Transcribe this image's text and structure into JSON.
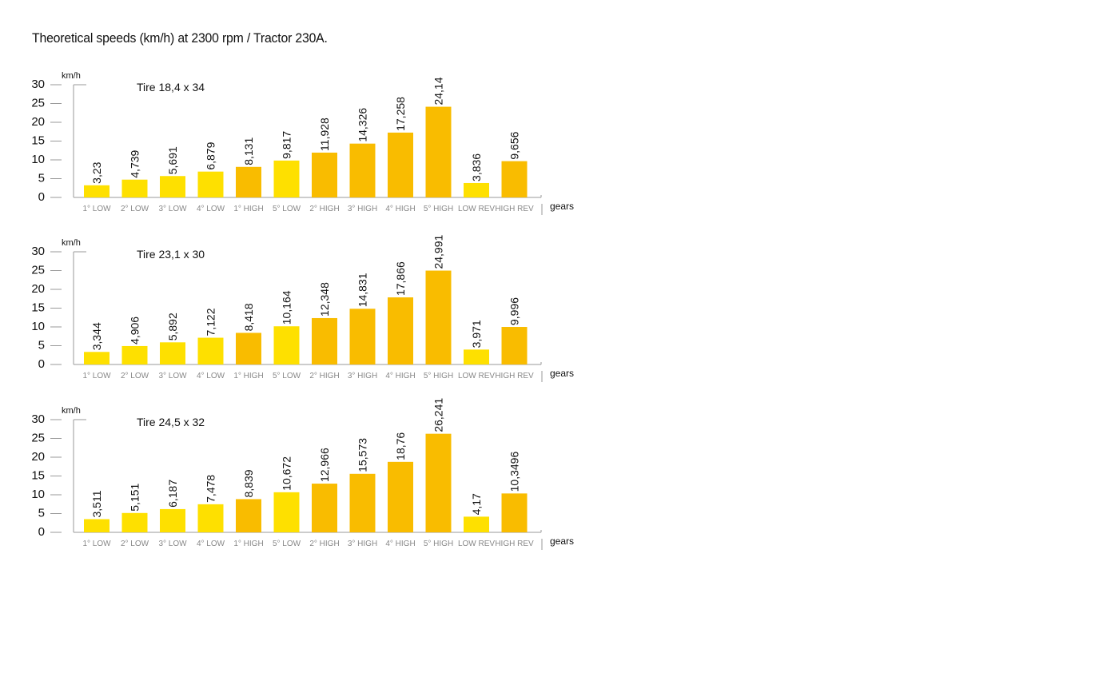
{
  "title": "Theoretical speeds (km/h) at 2300 rpm / Tractor 230A.",
  "colors": {
    "low": "#FEE000",
    "high": "#F9BC00",
    "axis": "#9a9a9a",
    "tick_text": "#111111",
    "category_text": "#888888",
    "label_text": "#111111"
  },
  "chart_data": [
    {
      "type": "bar",
      "subtitle": "Tire 18,4 x 34",
      "ylabel": "km/h",
      "xlabel": "gears",
      "ylim": [
        0,
        30
      ],
      "yticks": [
        0,
        5,
        10,
        15,
        20,
        25,
        30
      ],
      "categories": [
        "1° LOW",
        "2° LOW",
        "3° LOW",
        "4° LOW",
        "1° HIGH",
        "5° LOW",
        "2° HIGH",
        "3° HIGH",
        "4° HIGH",
        "5° HIGH",
        "LOW REV",
        "HIGH REV"
      ],
      "values": [
        3.23,
        4.739,
        5.691,
        6.879,
        8.131,
        9.817,
        11.928,
        14.326,
        17.258,
        24.14,
        3.836,
        9.656
      ],
      "value_labels": [
        "3,23",
        "4,739",
        "5,691",
        "6,879",
        "8,131",
        "9,817",
        "11,928",
        "14,326",
        "17,258",
        "24,14",
        "3,836",
        "9,656"
      ],
      "bar_colors": [
        "low",
        "low",
        "low",
        "low",
        "high",
        "low",
        "high",
        "high",
        "high",
        "high",
        "low",
        "high"
      ]
    },
    {
      "type": "bar",
      "subtitle": "Tire 23,1 x 30",
      "ylabel": "km/h",
      "xlabel": "gears",
      "ylim": [
        0,
        30
      ],
      "yticks": [
        0,
        5,
        10,
        15,
        20,
        25,
        30
      ],
      "categories": [
        "1° LOW",
        "2° LOW",
        "3° LOW",
        "4° LOW",
        "1° HIGH",
        "5° LOW",
        "2° HIGH",
        "3° HIGH",
        "4° HIGH",
        "5° HIGH",
        "LOW REV",
        "HIGH REV"
      ],
      "values": [
        3.344,
        4.906,
        5.892,
        7.122,
        8.418,
        10.164,
        12.348,
        14.831,
        17.866,
        24.991,
        3.971,
        9.996
      ],
      "value_labels": [
        "3,344",
        "4,906",
        "5,892",
        "7,122",
        "8,418",
        "10,164",
        "12,348",
        "14,831",
        "17,866",
        "24,991",
        "3,971",
        "9,996"
      ],
      "bar_colors": [
        "low",
        "low",
        "low",
        "low",
        "high",
        "low",
        "high",
        "high",
        "high",
        "high",
        "low",
        "high"
      ]
    },
    {
      "type": "bar",
      "subtitle": "Tire 24,5 x 32",
      "ylabel": "km/h",
      "xlabel": "gears",
      "ylim": [
        0,
        30
      ],
      "yticks": [
        0,
        5,
        10,
        15,
        20,
        25,
        30
      ],
      "categories": [
        "1° LOW",
        "2° LOW",
        "3° LOW",
        "4° LOW",
        "1° HIGH",
        "5° LOW",
        "2° HIGH",
        "3° HIGH",
        "4° HIGH",
        "5° HIGH",
        "LOW REV",
        "HIGH REV"
      ],
      "values": [
        3.511,
        5.151,
        6.187,
        7.478,
        8.839,
        10.672,
        12.966,
        15.573,
        18.76,
        26.241,
        4.17,
        10.3496
      ],
      "value_labels": [
        "3,511",
        "5,151",
        "6,187",
        "7,478",
        "8,839",
        "10,672",
        "12,966",
        "15,573",
        "18,76",
        "26,241",
        "4,17",
        "10,3496"
      ],
      "bar_colors": [
        "low",
        "low",
        "low",
        "low",
        "high",
        "low",
        "high",
        "high",
        "high",
        "high",
        "low",
        "high"
      ]
    }
  ]
}
